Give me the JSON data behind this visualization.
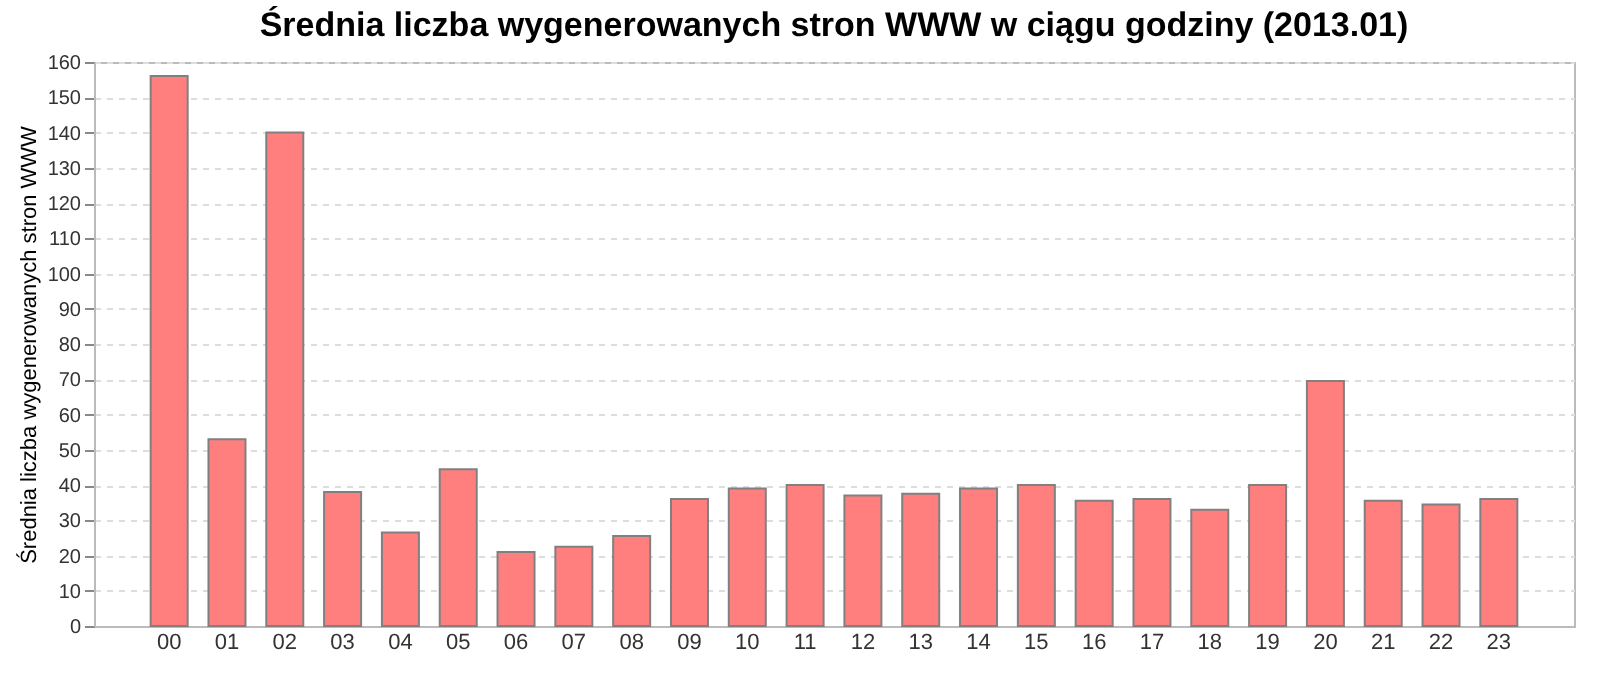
{
  "chart_data": {
    "type": "bar",
    "title": "Średnia liczba wygenerowanych stron WWW w ciągu godziny (2013.01)",
    "ylabel": "Średnia liczba wygenerowanych stron WWW",
    "categories": [
      "00",
      "01",
      "02",
      "03",
      "04",
      "05",
      "06",
      "07",
      "08",
      "09",
      "10",
      "11",
      "12",
      "13",
      "14",
      "15",
      "16",
      "17",
      "18",
      "19",
      "20",
      "21",
      "22",
      "23"
    ],
    "values": [
      156,
      53,
      140,
      38,
      26.5,
      44.5,
      21,
      22.5,
      25.5,
      36,
      39,
      40,
      37,
      37.5,
      39,
      40,
      35.5,
      36,
      33,
      40,
      69.5,
      35.5,
      34.5,
      36
    ],
    "color": "#ff7f7f",
    "ylim": [
      0,
      160
    ],
    "yticks": [
      0,
      10,
      20,
      30,
      40,
      50,
      60,
      70,
      80,
      90,
      100,
      110,
      120,
      130,
      140,
      150,
      160
    ],
    "grid": "y"
  }
}
